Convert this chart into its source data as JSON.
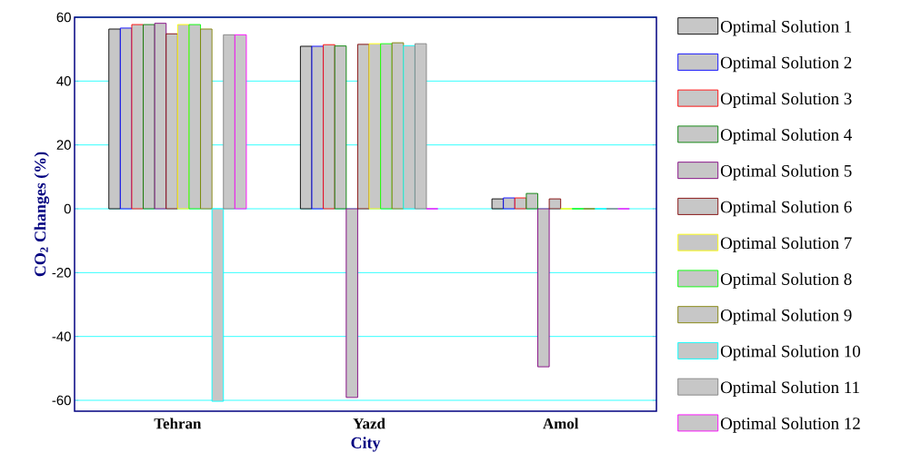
{
  "chart_data": {
    "type": "bar",
    "xlabel": "City",
    "ylabel": "CO$_{2}$ Changes (%)",
    "categories": [
      "Tehran",
      "Yazd",
      "Amol"
    ],
    "series": [
      {
        "name": "Optimal Solution 1",
        "color": "#000000",
        "values": [
          56.3,
          50.9,
          3.1
        ]
      },
      {
        "name": "Optimal Solution 2",
        "color": "#0000ff",
        "values": [
          56.6,
          50.9,
          3.4
        ]
      },
      {
        "name": "Optimal Solution 3",
        "color": "#ff0000",
        "values": [
          57.7,
          51.4,
          3.4
        ]
      },
      {
        "name": "Optimal Solution 4",
        "color": "#008000",
        "values": [
          57.7,
          51.0,
          4.8
        ]
      },
      {
        "name": "Optimal Solution 5",
        "color": "#800080",
        "values": [
          58.1,
          -59.1,
          -49.5
        ]
      },
      {
        "name": "Optimal Solution 6",
        "color": "#800000",
        "values": [
          54.8,
          51.5,
          3.1
        ]
      },
      {
        "name": "Optimal Solution 7",
        "color": "#ffff00",
        "values": [
          57.7,
          51.7,
          0
        ]
      },
      {
        "name": "Optimal Solution 8",
        "color": "#00ff00",
        "values": [
          57.7,
          51.7,
          0
        ]
      },
      {
        "name": "Optimal Solution 9",
        "color": "#808000",
        "values": [
          56.3,
          52.0,
          0
        ]
      },
      {
        "name": "Optimal Solution 10",
        "color": "#00ffff",
        "values": [
          -60.3,
          51.1,
          0
        ]
      },
      {
        "name": "Optimal Solution 11",
        "color": "#808080",
        "values": [
          54.5,
          51.7,
          0
        ]
      },
      {
        "name": "Optimal Solution 12",
        "color": "#ff00ff",
        "values": [
          54.5,
          0,
          0
        ]
      }
    ],
    "ylim": [
      -63.4,
      60
    ],
    "yticks": [
      -60,
      -40,
      -20,
      0,
      20,
      40,
      60
    ],
    "grid": "y",
    "legend": "right"
  }
}
